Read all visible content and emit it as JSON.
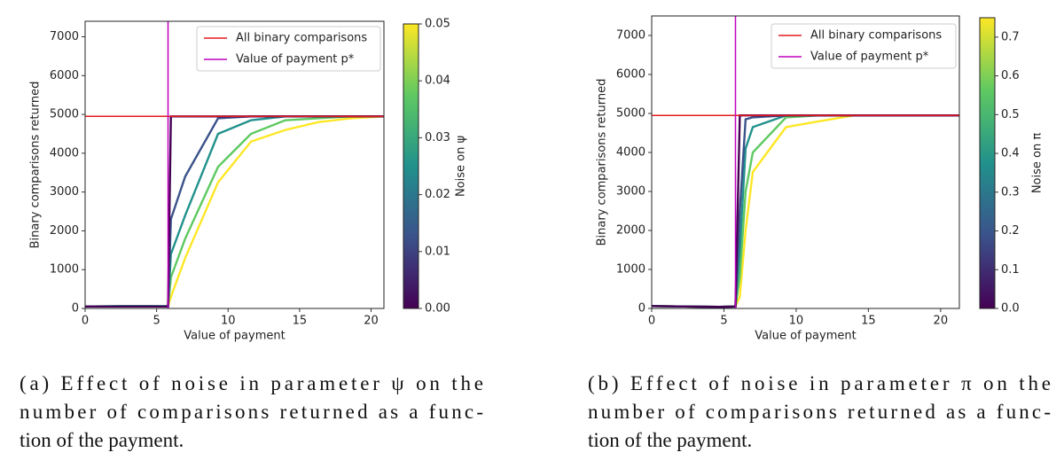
{
  "chart_data": [
    {
      "type": "line",
      "xlabel": "Value of payment",
      "ylabel": "Binary comparisons returned",
      "xlim": [
        0,
        20.9
      ],
      "ylim": [
        0,
        7400
      ],
      "xticks": [
        0,
        5,
        10,
        15,
        20
      ],
      "yticks": [
        0,
        1000,
        2000,
        3000,
        4000,
        5000,
        6000,
        7000
      ],
      "grid": false,
      "legend": "upper right",
      "x": [
        0,
        2.3,
        4.7,
        5.8,
        6,
        7,
        9.3,
        11.6,
        14,
        16.3,
        18.6,
        20.9
      ],
      "series": [
        {
          "color": "#440154",
          "values": [
            50,
            50,
            50,
            50,
            4950,
            4950,
            4950,
            4950,
            4950,
            4950,
            4950,
            4950
          ]
        },
        {
          "color": "#3b528b",
          "values": [
            50,
            50,
            50,
            50,
            2300,
            3400,
            4900,
            4950,
            4950,
            4950,
            4950,
            4950
          ]
        },
        {
          "color": "#21918c",
          "values": [
            50,
            60,
            60,
            60,
            1400,
            2400,
            4500,
            4850,
            4950,
            4950,
            4950,
            4950
          ]
        },
        {
          "color": "#5ec962",
          "values": [
            50,
            60,
            60,
            50,
            800,
            1800,
            3650,
            4500,
            4850,
            4900,
            4950,
            4950
          ]
        },
        {
          "color": "#fde725",
          "values": [
            50,
            50,
            50,
            50,
            300,
            1300,
            3250,
            4300,
            4600,
            4800,
            4900,
            4950
          ]
        }
      ],
      "reference_lines": [
        {
          "name": "All binary comparisons",
          "color": "#e41a1c",
          "y": 4950
        },
        {
          "name": "Value of payment p*",
          "color": "#bf00bf",
          "x": 5.8
        }
      ],
      "colorbar": {
        "label": "Noise on ψ",
        "colormap": "viridis",
        "lim": [
          0,
          0.05
        ],
        "ticks": [
          {
            "value": 0,
            "label": "0.00"
          },
          0.01,
          0.02,
          0.03,
          0.04,
          0.05
        ]
      },
      "caption": [
        "(a) Effect of noise in parameter ψ on the",
        "number of comparisons returned as a func-",
        "tion of the payment."
      ]
    },
    {
      "type": "line",
      "xlabel": "Value of payment",
      "ylabel": "Binary comparisons returned",
      "xlim": [
        0,
        21.3
      ],
      "ylim": [
        0,
        7500
      ],
      "xticks": [
        0,
        5,
        10,
        15,
        20
      ],
      "yticks": [
        0,
        1000,
        2000,
        3000,
        4000,
        5000,
        6000,
        7000
      ],
      "grid": false,
      "legend": "upper right",
      "x": [
        0,
        2.3,
        4.7,
        5.8,
        6.1,
        6.5,
        7,
        9.3,
        11.6,
        14,
        16.3,
        18.6,
        21.3
      ],
      "series": [
        {
          "color": "#440154",
          "values": [
            60,
            50,
            40,
            50,
            4950,
            4950,
            4950,
            4950,
            4950,
            4950,
            4950,
            4950,
            4950
          ]
        },
        {
          "color": "#3b528b",
          "values": [
            60,
            50,
            40,
            50,
            2500,
            4850,
            4900,
            4950,
            4950,
            4950,
            4950,
            4950,
            4950
          ]
        },
        {
          "color": "#21918c",
          "values": [
            60,
            50,
            40,
            50,
            1500,
            4100,
            4650,
            4950,
            4950,
            4950,
            4950,
            4950,
            4950
          ]
        },
        {
          "color": "#5ec962",
          "values": [
            60,
            50,
            40,
            50,
            800,
            3000,
            4000,
            4900,
            4950,
            4950,
            4950,
            4950,
            4950
          ]
        },
        {
          "color": "#fde725",
          "values": [
            60,
            50,
            40,
            50,
            300,
            2000,
            3500,
            4650,
            4800,
            4950,
            4950,
            4950,
            4950
          ]
        }
      ],
      "reference_lines": [
        {
          "name": "All binary comparisons",
          "color": "#e41a1c",
          "y": 4950
        },
        {
          "name": "Value of payment p*",
          "color": "#bf00bf",
          "x": 5.8
        }
      ],
      "colorbar": {
        "label": "Noise on π",
        "colormap": "viridis",
        "lim": [
          0,
          0.75
        ],
        "ticks": [
          {
            "value": 0,
            "label": "0.0"
          },
          0.1,
          0.2,
          0.3,
          0.4,
          0.5,
          0.6,
          0.7
        ]
      },
      "caption": [
        "(b) Effect of noise in parameter π on the",
        "number of comparisons returned as a func-",
        "tion of the payment."
      ]
    }
  ]
}
